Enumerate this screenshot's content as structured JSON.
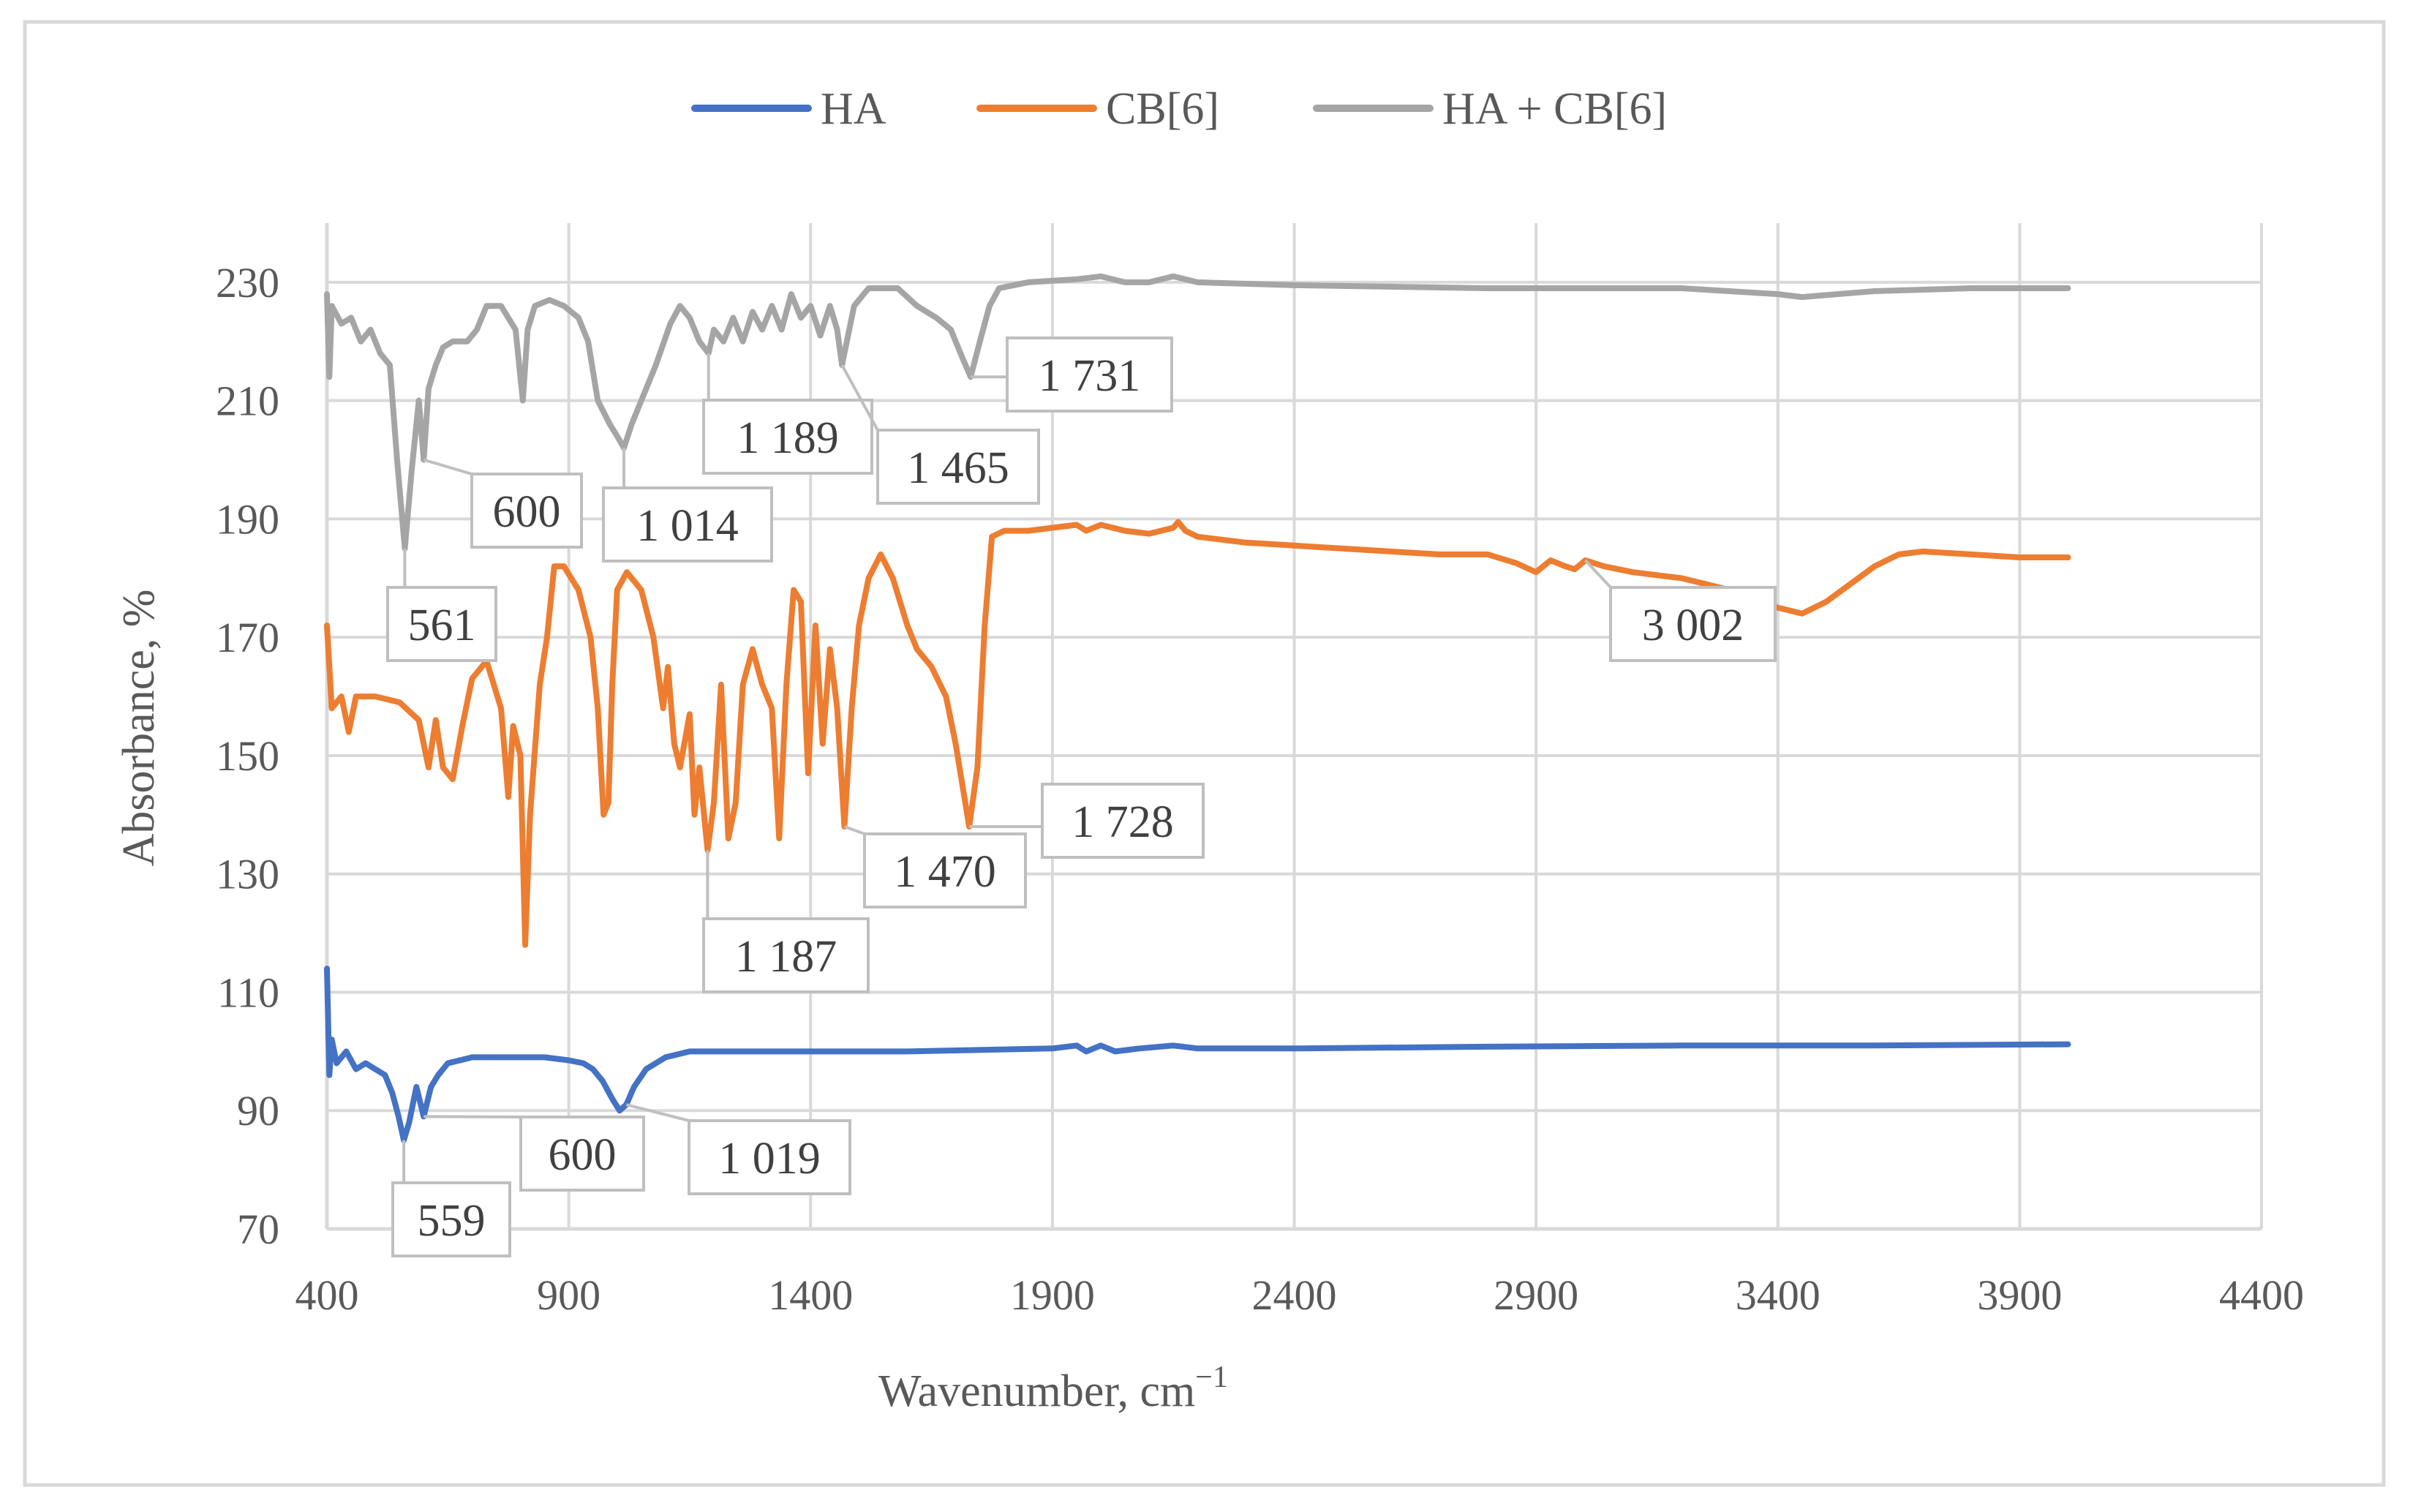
{
  "chart_data": {
    "type": "line",
    "title": "",
    "xlabel": "Wavenumber, cm",
    "xlabel_sup": "−1",
    "ylabel": "Absorbance, %",
    "xlim": [
      400,
      4400
    ],
    "ylim": [
      70,
      240
    ],
    "xticks": [
      "400",
      "900",
      "1400",
      "1900",
      "2400",
      "2900",
      "3400",
      "3900",
      "4400"
    ],
    "yticks": [
      "70",
      "90",
      "110",
      "130",
      "150",
      "170",
      "190",
      "210",
      "230"
    ],
    "grid": true,
    "legend_position": "top",
    "series": [
      {
        "name": "HA",
        "color": "#4472C4",
        "points": [
          [
            400,
            114
          ],
          [
            405,
            96
          ],
          [
            410,
            102
          ],
          [
            420,
            98
          ],
          [
            440,
            100
          ],
          [
            460,
            97
          ],
          [
            480,
            98
          ],
          [
            500,
            97
          ],
          [
            520,
            96
          ],
          [
            535,
            93
          ],
          [
            548,
            89
          ],
          [
            559,
            85
          ],
          [
            570,
            88
          ],
          [
            585,
            94
          ],
          [
            600,
            89
          ],
          [
            615,
            94
          ],
          [
            630,
            96
          ],
          [
            650,
            98
          ],
          [
            700,
            99
          ],
          [
            750,
            99
          ],
          [
            800,
            99
          ],
          [
            850,
            99
          ],
          [
            900,
            98.5
          ],
          [
            930,
            98
          ],
          [
            950,
            97
          ],
          [
            970,
            95
          ],
          [
            990,
            92
          ],
          [
            1005,
            90
          ],
          [
            1019,
            91
          ],
          [
            1035,
            94
          ],
          [
            1060,
            97
          ],
          [
            1100,
            99
          ],
          [
            1150,
            100
          ],
          [
            1300,
            100
          ],
          [
            1600,
            100
          ],
          [
            1900,
            100.5
          ],
          [
            1950,
            101
          ],
          [
            1970,
            100
          ],
          [
            2000,
            101
          ],
          [
            2030,
            100
          ],
          [
            2080,
            100.5
          ],
          [
            2150,
            101
          ],
          [
            2200,
            100.5
          ],
          [
            2400,
            100.5
          ],
          [
            2800,
            100.8
          ],
          [
            3200,
            101
          ],
          [
            3600,
            101
          ],
          [
            4000,
            101.2
          ]
        ]
      },
      {
        "name": "CB[6]",
        "color": "#ED7D31",
        "points": [
          [
            400,
            172
          ],
          [
            410,
            158
          ],
          [
            430,
            160
          ],
          [
            445,
            154
          ],
          [
            460,
            160
          ],
          [
            500,
            160
          ],
          [
            550,
            159
          ],
          [
            590,
            156
          ],
          [
            610,
            148
          ],
          [
            625,
            156
          ],
          [
            640,
            148
          ],
          [
            660,
            146
          ],
          [
            680,
            155
          ],
          [
            700,
            163
          ],
          [
            730,
            166
          ],
          [
            760,
            158
          ],
          [
            775,
            143
          ],
          [
            785,
            155
          ],
          [
            800,
            150
          ],
          [
            810,
            118
          ],
          [
            820,
            140
          ],
          [
            840,
            162
          ],
          [
            855,
            170
          ],
          [
            870,
            182
          ],
          [
            890,
            182
          ],
          [
            920,
            178
          ],
          [
            945,
            170
          ],
          [
            960,
            158
          ],
          [
            972,
            140
          ],
          [
            982,
            142
          ],
          [
            990,
            162
          ],
          [
            1000,
            178
          ],
          [
            1020,
            181
          ],
          [
            1050,
            178
          ],
          [
            1075,
            170
          ],
          [
            1095,
            158
          ],
          [
            1105,
            165
          ],
          [
            1118,
            152
          ],
          [
            1130,
            148
          ],
          [
            1150,
            157
          ],
          [
            1160,
            140
          ],
          [
            1170,
            148
          ],
          [
            1187,
            134
          ],
          [
            1200,
            142
          ],
          [
            1215,
            162
          ],
          [
            1230,
            136
          ],
          [
            1245,
            142
          ],
          [
            1260,
            162
          ],
          [
            1280,
            168
          ],
          [
            1300,
            162
          ],
          [
            1320,
            158
          ],
          [
            1335,
            136
          ],
          [
            1350,
            162
          ],
          [
            1365,
            178
          ],
          [
            1380,
            176
          ],
          [
            1395,
            147
          ],
          [
            1410,
            172
          ],
          [
            1425,
            152
          ],
          [
            1440,
            168
          ],
          [
            1455,
            158
          ],
          [
            1470,
            138
          ],
          [
            1485,
            158
          ],
          [
            1500,
            172
          ],
          [
            1520,
            180
          ],
          [
            1545,
            184
          ],
          [
            1570,
            180
          ],
          [
            1600,
            172
          ],
          [
            1620,
            168
          ],
          [
            1650,
            165
          ],
          [
            1680,
            160
          ],
          [
            1700,
            152
          ],
          [
            1728,
            138
          ],
          [
            1745,
            148
          ],
          [
            1760,
            172
          ],
          [
            1775,
            187
          ],
          [
            1800,
            188
          ],
          [
            1850,
            188
          ],
          [
            1900,
            188.5
          ],
          [
            1950,
            189
          ],
          [
            1970,
            188
          ],
          [
            2000,
            189
          ],
          [
            2050,
            188
          ],
          [
            2100,
            187.5
          ],
          [
            2150,
            188.5
          ],
          [
            2160,
            189.5
          ],
          [
            2175,
            188
          ],
          [
            2200,
            187
          ],
          [
            2300,
            186
          ],
          [
            2400,
            185.5
          ],
          [
            2500,
            185
          ],
          [
            2600,
            184.5
          ],
          [
            2700,
            184
          ],
          [
            2800,
            184
          ],
          [
            2860,
            182.5
          ],
          [
            2900,
            181
          ],
          [
            2930,
            183
          ],
          [
            2960,
            182
          ],
          [
            2980,
            181.5
          ],
          [
            3002,
            183
          ],
          [
            3040,
            182
          ],
          [
            3100,
            181
          ],
          [
            3150,
            180.5
          ],
          [
            3200,
            180
          ],
          [
            3250,
            179
          ],
          [
            3300,
            178
          ],
          [
            3350,
            176.5
          ],
          [
            3400,
            175
          ],
          [
            3450,
            174
          ],
          [
            3500,
            176
          ],
          [
            3550,
            179
          ],
          [
            3600,
            182
          ],
          [
            3650,
            184
          ],
          [
            3700,
            184.5
          ],
          [
            3800,
            184
          ],
          [
            3900,
            183.5
          ],
          [
            4000,
            183.5
          ]
        ]
      },
      {
        "name": "HA + CB[6]",
        "color": "#A5A5A5",
        "points": [
          [
            400,
            228
          ],
          [
            405,
            214
          ],
          [
            410,
            226
          ],
          [
            430,
            223
          ],
          [
            450,
            224
          ],
          [
            470,
            220
          ],
          [
            490,
            222
          ],
          [
            510,
            218
          ],
          [
            530,
            216
          ],
          [
            545,
            200
          ],
          [
            561,
            185
          ],
          [
            575,
            198
          ],
          [
            590,
            210
          ],
          [
            600,
            200
          ],
          [
            610,
            212
          ],
          [
            625,
            216
          ],
          [
            640,
            219
          ],
          [
            660,
            220
          ],
          [
            690,
            220
          ],
          [
            710,
            222
          ],
          [
            730,
            226
          ],
          [
            760,
            226
          ],
          [
            790,
            222
          ],
          [
            805,
            210
          ],
          [
            815,
            222
          ],
          [
            830,
            226
          ],
          [
            860,
            227
          ],
          [
            890,
            226
          ],
          [
            920,
            224
          ],
          [
            940,
            220
          ],
          [
            960,
            210
          ],
          [
            985,
            206
          ],
          [
            1000,
            204
          ],
          [
            1014,
            202
          ],
          [
            1030,
            206
          ],
          [
            1050,
            210
          ],
          [
            1080,
            216
          ],
          [
            1110,
            223
          ],
          [
            1130,
            226
          ],
          [
            1150,
            224
          ],
          [
            1170,
            220
          ],
          [
            1189,
            218
          ],
          [
            1200,
            222
          ],
          [
            1220,
            220
          ],
          [
            1240,
            224
          ],
          [
            1260,
            220
          ],
          [
            1280,
            225
          ],
          [
            1300,
            222
          ],
          [
            1320,
            226
          ],
          [
            1340,
            222
          ],
          [
            1360,
            228
          ],
          [
            1380,
            224
          ],
          [
            1400,
            226
          ],
          [
            1420,
            221
          ],
          [
            1440,
            226
          ],
          [
            1455,
            222
          ],
          [
            1465,
            216
          ],
          [
            1475,
            220
          ],
          [
            1490,
            226
          ],
          [
            1520,
            229
          ],
          [
            1580,
            229
          ],
          [
            1620,
            226
          ],
          [
            1660,
            224
          ],
          [
            1690,
            222
          ],
          [
            1710,
            218
          ],
          [
            1731,
            214
          ],
          [
            1750,
            220
          ],
          [
            1770,
            226
          ],
          [
            1790,
            229
          ],
          [
            1850,
            230
          ],
          [
            1950,
            230.5
          ],
          [
            2000,
            231
          ],
          [
            2050,
            230
          ],
          [
            2100,
            230
          ],
          [
            2150,
            231
          ],
          [
            2200,
            230
          ],
          [
            2400,
            229.5
          ],
          [
            2800,
            229
          ],
          [
            3200,
            229
          ],
          [
            3400,
            228
          ],
          [
            3450,
            227.5
          ],
          [
            3600,
            228.5
          ],
          [
            3800,
            229
          ],
          [
            4000,
            229
          ]
        ]
      }
    ],
    "annotations": [
      {
        "text": "561",
        "point": [
          561,
          185
        ],
        "series": "HA + CB[6]"
      },
      {
        "text": "600",
        "point": [
          600,
          200
        ],
        "series": "HA + CB[6]"
      },
      {
        "text": "1 014",
        "point": [
          1014,
          202
        ],
        "series": "HA + CB[6]"
      },
      {
        "text": "1 189",
        "point": [
          1189,
          218
        ],
        "series": "HA + CB[6]"
      },
      {
        "text": "1 465",
        "point": [
          1465,
          216
        ],
        "series": "HA + CB[6]"
      },
      {
        "text": "1 731",
        "point": [
          1731,
          214
        ],
        "series": "HA + CB[6]"
      },
      {
        "text": "1 187",
        "point": [
          1187,
          134
        ],
        "series": "CB[6]"
      },
      {
        "text": "1 470",
        "point": [
          1470,
          138
        ],
        "series": "CB[6]"
      },
      {
        "text": "1 728",
        "point": [
          1728,
          138
        ],
        "series": "CB[6]"
      },
      {
        "text": "3 002",
        "point": [
          3002,
          183
        ],
        "series": "CB[6]"
      },
      {
        "text": "559",
        "point": [
          559,
          85
        ],
        "series": "HA"
      },
      {
        "text": "600",
        "point": [
          600,
          89
        ],
        "series": "HA"
      },
      {
        "text": "1 019",
        "point": [
          1019,
          91
        ],
        "series": "HA"
      }
    ]
  }
}
